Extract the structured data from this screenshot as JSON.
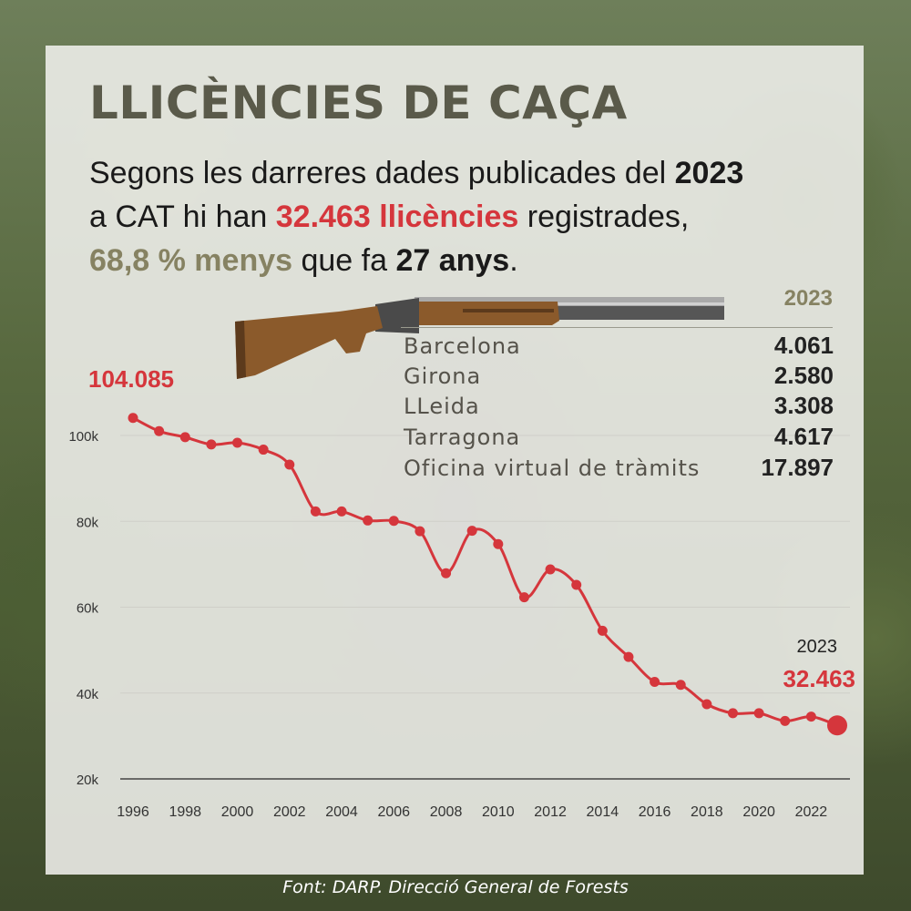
{
  "title": "LLICÈNCIES DE CAÇA",
  "subtitle": {
    "line1_text": "Segons les darreres dades publicades del ",
    "line1_year": "2023",
    "line2_prefix": "a CAT hi han ",
    "line2_highlight": "32.463 llicències",
    "line2_suffix": " registrades,",
    "line3_highlight": "68,8 % menys",
    "line3_middle": " que fa ",
    "line3_bold": "27 anys",
    "line3_end": "."
  },
  "table": {
    "header": "2023",
    "rows": [
      {
        "name": "Barcelona",
        "value": "4.061"
      },
      {
        "name": "Girona",
        "value": "2.580"
      },
      {
        "name": "LLeida",
        "value": "3.308"
      },
      {
        "name": "Tarragona",
        "value": "4.617"
      },
      {
        "name": "Oficina virtual de tràmits",
        "value": "17.897"
      }
    ]
  },
  "source": "Font: DARP. Direcció General de Forests",
  "colors": {
    "line": "#d5363c",
    "title": "#5a5a4a",
    "olive": "#868262"
  },
  "chart_data": {
    "type": "line",
    "title": "LLICÈNCIES DE CAÇA",
    "xlabel": "",
    "ylabel": "",
    "x": [
      1996,
      1997,
      1998,
      1999,
      2000,
      2001,
      2002,
      2003,
      2004,
      2005,
      2006,
      2007,
      2008,
      2009,
      2010,
      2011,
      2012,
      2013,
      2014,
      2015,
      2016,
      2017,
      2018,
      2019,
      2020,
      2021,
      2022,
      2023
    ],
    "series": [
      {
        "values": [
          104085,
          101000,
          99600,
          97900,
          98300,
          96700,
          93200,
          82300,
          82300,
          80200,
          80100,
          77700,
          67900,
          77800,
          74700,
          62300,
          68800,
          65200,
          54500,
          48400,
          42600,
          41900,
          37400,
          35300,
          35300,
          33500,
          34500,
          32463
        ]
      }
    ],
    "ylim": [
      20000,
      110000
    ],
    "yticks": [
      20000,
      40000,
      60000,
      80000,
      100000
    ],
    "yticklabels": [
      "20k",
      "40k",
      "60k",
      "80k",
      "100k"
    ],
    "xticks": [
      1996,
      1998,
      2000,
      2002,
      2004,
      2006,
      2008,
      2010,
      2012,
      2014,
      2016,
      2018,
      2020,
      2022
    ],
    "xticklabels": [
      "1996",
      "1998",
      "2000",
      "2002",
      "2004",
      "2006",
      "2008",
      "2010",
      "2012",
      "2014",
      "2016",
      "2018",
      "2020",
      "2022"
    ],
    "annotations": {
      "start_value": "104.085",
      "end_year": "2023",
      "end_value": "32.463"
    },
    "grid": true
  }
}
